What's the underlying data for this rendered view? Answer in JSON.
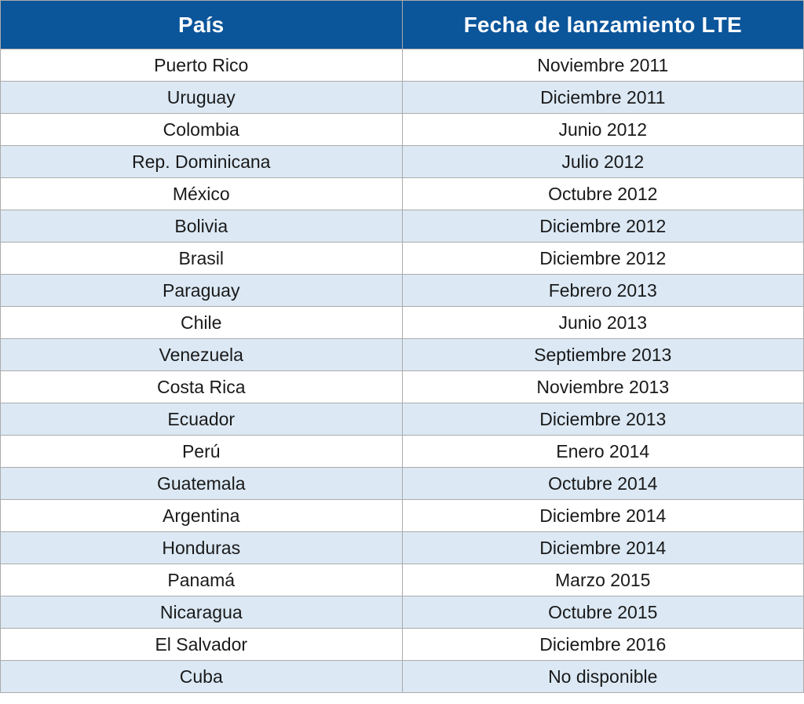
{
  "colors": {
    "header_bg": "#0B559A",
    "header_text": "#FFFFFF",
    "row_alt_bg": "#DCE9F5",
    "row_bg": "#FFFFFF",
    "border": "#ABABAB",
    "cell_text": "#1A1A1A"
  },
  "chart_data": {
    "type": "table",
    "columns": [
      "País",
      "Fecha de lanzamiento LTE"
    ],
    "rows": [
      [
        "Puerto Rico",
        "Noviembre 2011"
      ],
      [
        "Uruguay",
        "Diciembre 2011"
      ],
      [
        "Colombia",
        "Junio 2012"
      ],
      [
        "Rep. Dominicana",
        "Julio 2012"
      ],
      [
        "México",
        "Octubre 2012"
      ],
      [
        "Bolivia",
        "Diciembre 2012"
      ],
      [
        "Brasil",
        "Diciembre 2012"
      ],
      [
        "Paraguay",
        "Febrero 2013"
      ],
      [
        "Chile",
        "Junio 2013"
      ],
      [
        "Venezuela",
        "Septiembre 2013"
      ],
      [
        "Costa Rica",
        "Noviembre 2013"
      ],
      [
        "Ecuador",
        "Diciembre 2013"
      ],
      [
        "Perú",
        "Enero 2014"
      ],
      [
        "Guatemala",
        "Octubre 2014"
      ],
      [
        "Argentina",
        "Diciembre 2014"
      ],
      [
        "Honduras",
        "Diciembre 2014"
      ],
      [
        "Panamá",
        "Marzo 2015"
      ],
      [
        "Nicaragua",
        "Octubre 2015"
      ],
      [
        "El Salvador",
        "Diciembre 2016"
      ],
      [
        "Cuba",
        "No disponible"
      ]
    ]
  }
}
